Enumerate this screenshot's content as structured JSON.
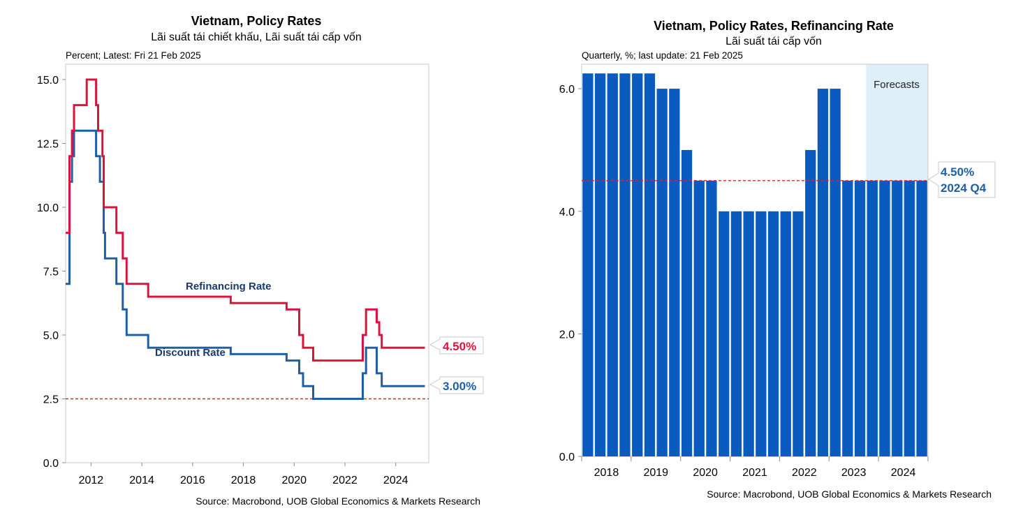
{
  "colors": {
    "refinancing": "#dc143c",
    "discount": "#1f5fa8",
    "bar": "#0a5bbf",
    "floor_line": "#d62828",
    "forecast_shade": "#ddeff8",
    "callout_blue": "#1f5fa8",
    "callout_red": "#dc143c"
  },
  "chart_data": [
    {
      "type": "line",
      "title": "Vietnam, Policy Rates",
      "subtitle": "Lãi suất tái chiết khấu, Lãi suất tái cấp vốn",
      "note": "Percent; Latest: Fri 21 Feb 2025",
      "source": "Source: Macrobond, UOB Global Economics & Markets Research",
      "xlim": [
        2011.0,
        2025.3
      ],
      "ylim": [
        0,
        15.6
      ],
      "x_ticks": [
        2012,
        2014,
        2016,
        2018,
        2020,
        2022,
        2024
      ],
      "y_ticks": [
        0,
        2.5,
        5,
        7.5,
        10,
        12.5,
        15
      ],
      "y_tick_labels": [
        "0.0",
        "2.5",
        "5.0",
        "7.5",
        "10.0",
        "12.5",
        "15.0"
      ],
      "reference_line": 2.5,
      "series": [
        {
          "name": "Refinancing Rate",
          "last_value_label": "4.50%",
          "steps": [
            [
              2011.0,
              9
            ],
            [
              2011.15,
              12
            ],
            [
              2011.25,
              13
            ],
            [
              2011.33,
              14
            ],
            [
              2011.83,
              15
            ],
            [
              2012.2,
              14
            ],
            [
              2012.28,
              13
            ],
            [
              2012.45,
              12
            ],
            [
              2012.5,
              10
            ],
            [
              2013.0,
              9
            ],
            [
              2013.25,
              8
            ],
            [
              2013.4,
              7
            ],
            [
              2014.25,
              6.5
            ],
            [
              2017.5,
              6.25
            ],
            [
              2019.7,
              6
            ],
            [
              2020.2,
              5
            ],
            [
              2020.35,
              4.5
            ],
            [
              2020.75,
              4
            ],
            [
              2022.7,
              5
            ],
            [
              2022.83,
              6
            ],
            [
              2023.25,
              5.5
            ],
            [
              2023.35,
              5
            ],
            [
              2023.45,
              4.5
            ],
            [
              2025.15,
              4.5
            ]
          ]
        },
        {
          "name": "Discount Rate",
          "last_value_label": "3.00%",
          "steps": [
            [
              2011.0,
              7
            ],
            [
              2011.15,
              11
            ],
            [
              2011.25,
              12
            ],
            [
              2011.33,
              13
            ],
            [
              2012.2,
              12
            ],
            [
              2012.35,
              11
            ],
            [
              2012.5,
              9
            ],
            [
              2012.55,
              8
            ],
            [
              2013.0,
              7
            ],
            [
              2013.25,
              6
            ],
            [
              2013.4,
              5
            ],
            [
              2014.25,
              4.5
            ],
            [
              2017.5,
              4.25
            ],
            [
              2019.7,
              4
            ],
            [
              2020.2,
              3.5
            ],
            [
              2020.35,
              3
            ],
            [
              2020.75,
              2.5
            ],
            [
              2022.7,
              3.5
            ],
            [
              2022.83,
              4.5
            ],
            [
              2023.25,
              3.5
            ],
            [
              2023.45,
              3
            ],
            [
              2025.15,
              3
            ]
          ]
        }
      ]
    },
    {
      "type": "bar",
      "title": "Vietnam, Policy Rates, Refinancing Rate",
      "subtitle": "Lãi suất tái cấp vốn",
      "note": "Quarterly, %; last update: 21 Feb 2025",
      "source": "Source: Macrobond, UOB Global Economics & Markets Research",
      "forecast_label": "Forecasts",
      "ylim": [
        0,
        6.4
      ],
      "y_ticks": [
        0,
        2,
        4,
        6
      ],
      "y_tick_labels": [
        "0.0",
        "2.0",
        "4.0",
        "6.0"
      ],
      "year_labels": [
        "2018",
        "2019",
        "2020",
        "2021",
        "2022",
        "2023",
        "2024"
      ],
      "categories": [
        "2018 Q1",
        "2018 Q2",
        "2018 Q3",
        "2018 Q4",
        "2019 Q1",
        "2019 Q2",
        "2019 Q3",
        "2019 Q4",
        "2020 Q1",
        "2020 Q2",
        "2020 Q3",
        "2020 Q4",
        "2021 Q1",
        "2021 Q2",
        "2021 Q3",
        "2021 Q4",
        "2022 Q1",
        "2022 Q2",
        "2022 Q3",
        "2022 Q4",
        "2023 Q1",
        "2023 Q2",
        "2023 Q3",
        "2023 Q4",
        "2024 Q1",
        "2024 Q2",
        "2024 Q3",
        "2024 Q4"
      ],
      "values": [
        6.25,
        6.25,
        6.25,
        6.25,
        6.25,
        6.25,
        6,
        6,
        5,
        4.5,
        4.5,
        4,
        4,
        4,
        4,
        4,
        4,
        4,
        5,
        6,
        6,
        4.5,
        4.5,
        4.5,
        4.5,
        4.5,
        4.5,
        4.5
      ],
      "forecast_start_index": 23,
      "reference_line": 4.5,
      "callout": [
        "4.50%",
        "2024 Q4"
      ]
    }
  ]
}
